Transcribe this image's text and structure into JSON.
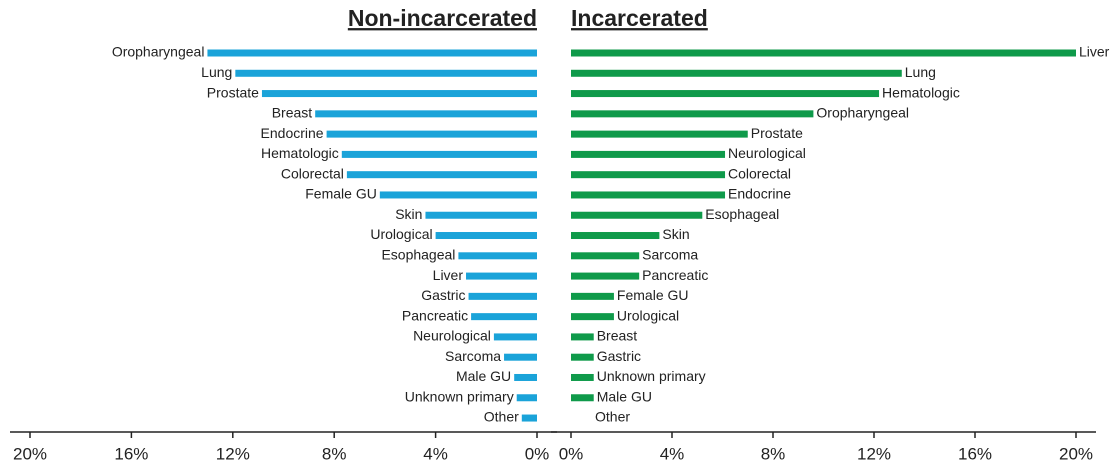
{
  "chart_data": [
    {
      "type": "bar",
      "orientation": "horizontal",
      "title": "Non-incarcerated",
      "color": "#1aa3d9",
      "categories": [
        "Oropharyngeal",
        "Lung",
        "Prostate",
        "Breast",
        "Endocrine",
        "Hematologic",
        "Colorectal",
        "Female GU",
        "Skin",
        "Urological",
        "Esophageal",
        "Liver",
        "Gastric",
        "Pancreatic",
        "Neurological",
        "Sarcoma",
        "Male GU",
        "Unknown primary",
        "Other"
      ],
      "values": [
        13.0,
        11.9,
        10.85,
        8.75,
        8.3,
        7.7,
        7.5,
        6.2,
        4.4,
        4.0,
        3.1,
        2.8,
        2.7,
        2.6,
        1.7,
        1.3,
        0.9,
        0.8,
        0.6
      ],
      "xlim": [
        20,
        0
      ],
      "xticks": [
        {
          "value": 20,
          "label": "20%"
        },
        {
          "value": 16,
          "label": "16%"
        },
        {
          "value": 12,
          "label": "12%"
        },
        {
          "value": 8,
          "label": "8%"
        },
        {
          "value": 4,
          "label": "4%"
        },
        {
          "value": 0,
          "label": "0%"
        }
      ]
    },
    {
      "type": "bar",
      "orientation": "horizontal",
      "title": "Incarcerated",
      "color": "#0f9a4a",
      "categories": [
        "Liver",
        "Lung",
        "Hematologic",
        "Oropharyngeal",
        "Prostate",
        "Neurological",
        "Colorectal",
        "Endocrine",
        "Esophageal",
        "Skin",
        "Sarcoma",
        "Pancreatic",
        "Female GU",
        "Urological",
        "Breast",
        "Gastric",
        "Unknown primary",
        "Male GU",
        "Other"
      ],
      "values": [
        20.0,
        13.1,
        12.2,
        9.6,
        7.0,
        6.1,
        6.1,
        6.1,
        5.2,
        3.5,
        2.7,
        2.7,
        1.7,
        1.7,
        0.9,
        0.9,
        0.9,
        0.9,
        0
      ],
      "xlim": [
        0,
        20
      ],
      "xticks": [
        {
          "value": 0,
          "label": "0%"
        },
        {
          "value": 4,
          "label": "4%"
        },
        {
          "value": 8,
          "label": "8%"
        },
        {
          "value": 12,
          "label": "12%"
        },
        {
          "value": 16,
          "label": "16%"
        },
        {
          "value": 20,
          "label": "20%"
        }
      ]
    }
  ]
}
